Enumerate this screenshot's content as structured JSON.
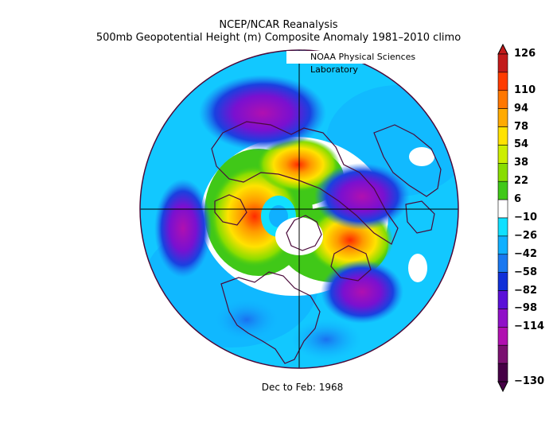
{
  "title_line1": "NCEP/NCAR Reanalysis",
  "title_line2": "500mb Geopotential Height (m) Composite Anomaly 1981–2010 climo",
  "credit": "NOAA Physical Sciences Laboratory",
  "footer": "Dec to Feb: 1968",
  "colorbar": {
    "labels": [
      "126",
      "110",
      "94",
      "78",
      "54",
      "38",
      "22",
      "6",
      "−10",
      "−26",
      "−42",
      "−58",
      "−82",
      "−98",
      "−114",
      "−130"
    ],
    "colors": [
      "#c21a1a",
      "#ff3b00",
      "#ff7700",
      "#ffaa00",
      "#ffe200",
      "#ccee00",
      "#88dd00",
      "#40c818",
      "#ffffff",
      "#10e0ff",
      "#10b0ff",
      "#1a78f0",
      "#1030d8",
      "#5a10d8",
      "#9010c8",
      "#b010b0",
      "#7a1070",
      "#460046"
    ]
  }
}
